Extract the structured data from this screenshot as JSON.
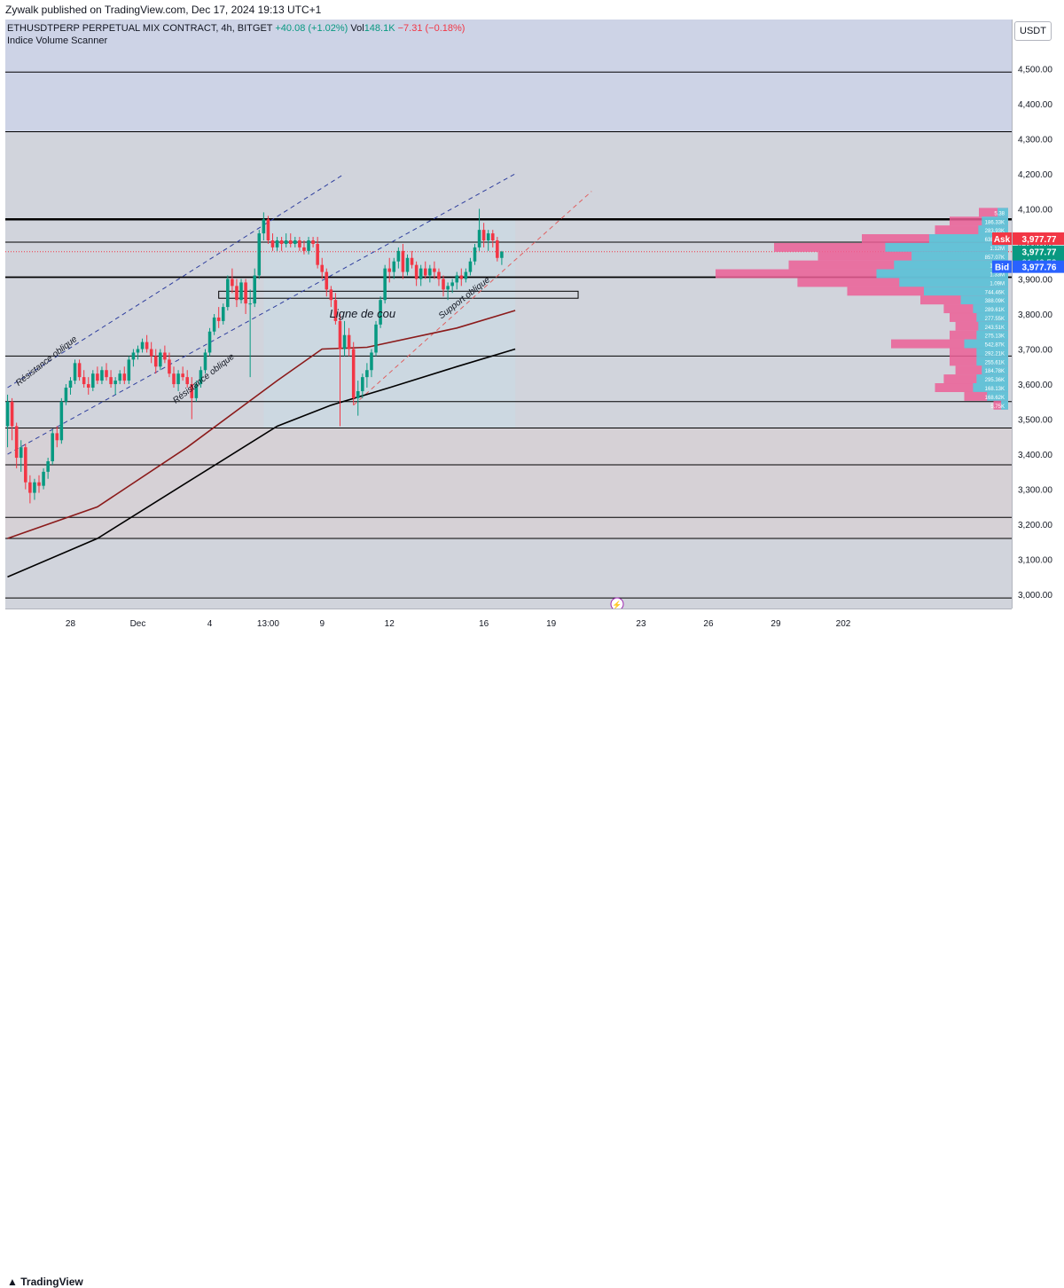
{
  "header": {
    "publisher_line": "Zywalk published on TradingView.com, Dec 17, 2024 19:13 UTC+1"
  },
  "legend": {
    "symbol": "ETHUSDTPERP PERPETUAL MIX CONTRACT, 4h, BITGET",
    "change": "+40.08 (+1.02%)",
    "vol_label": "Vol",
    "vol_value": "148.1K",
    "vol_change": "−7.31 (−0.18%)",
    "indicator": "Indice Volume Scanner"
  },
  "toolbar": {
    "currency": "USDT"
  },
  "footer": {
    "brand": "TradingView"
  },
  "colors": {
    "up": "#089981",
    "down": "#f23645",
    "ema_red": "#8b1a1a",
    "ema_black": "#000000",
    "channel": "#2f3f9e",
    "support": "#e06060",
    "vp_pink": "#ec5f96",
    "vp_cyan": "#4dd0e1",
    "ask": "#f23645",
    "bid": "#2962ff",
    "last": "#089981"
  },
  "chart_data": {
    "type": "candlestick",
    "timeframe": "4h",
    "ylim": [
      2960,
      4640
    ],
    "y_ticks": [
      3000,
      3100,
      3200,
      3300,
      3400,
      3500,
      3600,
      3700,
      3800,
      3900,
      4000,
      4100,
      4200,
      4300,
      4400,
      4500
    ],
    "y_tick_labels": [
      "3,000.00",
      "3,100.00",
      "3,200.00",
      "3,300.00",
      "3,400.00",
      "3,500.00",
      "3,600.00",
      "3,700.00",
      "3,800.00",
      "3,900.00",
      "4,000.00",
      "4,100.00",
      "4,200.00",
      "4,300.00",
      "4,400.00",
      "4,500.00"
    ],
    "x_range_bars": [
      0,
      224
    ],
    "x_ticks": [
      {
        "bar": 14,
        "label": "28"
      },
      {
        "bar": 29,
        "label": "Dec"
      },
      {
        "bar": 45,
        "label": "4"
      },
      {
        "bar": 58,
        "label": "13:00"
      },
      {
        "bar": 70,
        "label": "9"
      },
      {
        "bar": 85,
        "label": "12"
      },
      {
        "bar": 106,
        "label": "16"
      },
      {
        "bar": 121,
        "label": "19"
      },
      {
        "bar": 141,
        "label": "23"
      },
      {
        "bar": 156,
        "label": "26"
      },
      {
        "bar": 171,
        "label": "29"
      },
      {
        "bar": 186,
        "label": "202"
      }
    ],
    "candles": [
      [
        3480,
        3570,
        3420,
        3550
      ],
      [
        3550,
        3560,
        3440,
        3480
      ],
      [
        3480,
        3490,
        3360,
        3390
      ],
      [
        3390,
        3440,
        3350,
        3420
      ],
      [
        3420,
        3430,
        3300,
        3320
      ],
      [
        3320,
        3340,
        3260,
        3290
      ],
      [
        3290,
        3330,
        3270,
        3320
      ],
      [
        3320,
        3340,
        3290,
        3310
      ],
      [
        3310,
        3360,
        3300,
        3350
      ],
      [
        3350,
        3390,
        3330,
        3380
      ],
      [
        3380,
        3470,
        3370,
        3460
      ],
      [
        3460,
        3480,
        3420,
        3440
      ],
      [
        3440,
        3560,
        3430,
        3550
      ],
      [
        3550,
        3600,
        3540,
        3590
      ],
      [
        3590,
        3620,
        3570,
        3610
      ],
      [
        3610,
        3670,
        3600,
        3660
      ],
      [
        3660,
        3670,
        3610,
        3620
      ],
      [
        3620,
        3640,
        3590,
        3600
      ],
      [
        3600,
        3620,
        3570,
        3590
      ],
      [
        3590,
        3640,
        3580,
        3630
      ],
      [
        3630,
        3650,
        3600,
        3610
      ],
      [
        3610,
        3650,
        3600,
        3640
      ],
      [
        3640,
        3660,
        3610,
        3620
      ],
      [
        3620,
        3640,
        3590,
        3600
      ],
      [
        3600,
        3620,
        3570,
        3610
      ],
      [
        3610,
        3640,
        3600,
        3630
      ],
      [
        3630,
        3650,
        3600,
        3610
      ],
      [
        3610,
        3680,
        3600,
        3670
      ],
      [
        3670,
        3700,
        3650,
        3690
      ],
      [
        3690,
        3710,
        3670,
        3700
      ],
      [
        3700,
        3730,
        3690,
        3720
      ],
      [
        3720,
        3740,
        3690,
        3700
      ],
      [
        3700,
        3720,
        3660,
        3680
      ],
      [
        3680,
        3700,
        3630,
        3650
      ],
      [
        3650,
        3700,
        3640,
        3690
      ],
      [
        3690,
        3710,
        3660,
        3670
      ],
      [
        3670,
        3690,
        3620,
        3630
      ],
      [
        3630,
        3650,
        3590,
        3600
      ],
      [
        3600,
        3640,
        3580,
        3630
      ],
      [
        3630,
        3650,
        3610,
        3620
      ],
      [
        3620,
        3640,
        3590,
        3600
      ],
      [
        3600,
        3620,
        3500,
        3560
      ],
      [
        3560,
        3610,
        3550,
        3600
      ],
      [
        3600,
        3650,
        3590,
        3640
      ],
      [
        3640,
        3700,
        3630,
        3690
      ],
      [
        3690,
        3760,
        3680,
        3750
      ],
      [
        3750,
        3800,
        3740,
        3790
      ],
      [
        3790,
        3820,
        3760,
        3780
      ],
      [
        3780,
        3830,
        3770,
        3820
      ],
      [
        3820,
        3910,
        3810,
        3900
      ],
      [
        3900,
        3930,
        3860,
        3880
      ],
      [
        3880,
        3900,
        3820,
        3840
      ],
      [
        3840,
        3900,
        3830,
        3890
      ],
      [
        3890,
        3900,
        3800,
        3830
      ],
      [
        3830,
        3870,
        3620,
        3830
      ],
      [
        3830,
        3930,
        3820,
        3910
      ],
      [
        3910,
        4040,
        3900,
        4030
      ],
      [
        4030,
        4090,
        4010,
        4070
      ],
      [
        4070,
        4080,
        4000,
        4010
      ],
      [
        4010,
        4030,
        3980,
        3990
      ],
      [
        3990,
        4020,
        3980,
        4010
      ],
      [
        4010,
        4020,
        3980,
        4000
      ],
      [
        4000,
        4030,
        3990,
        4010
      ],
      [
        4010,
        4030,
        3990,
        4000
      ],
      [
        4000,
        4020,
        3990,
        4010
      ],
      [
        4010,
        4020,
        3980,
        3990
      ],
      [
        3990,
        4010,
        3970,
        3980
      ],
      [
        3980,
        4020,
        3970,
        4010
      ],
      [
        4010,
        4020,
        3990,
        4000
      ],
      [
        4000,
        4020,
        3930,
        3940
      ],
      [
        3940,
        3960,
        3900,
        3920
      ],
      [
        3920,
        3930,
        3850,
        3870
      ],
      [
        3870,
        3880,
        3820,
        3840
      ],
      [
        3840,
        3860,
        3770,
        3780
      ],
      [
        3780,
        3800,
        3480,
        3700
      ],
      [
        3700,
        3780,
        3680,
        3740
      ],
      [
        3740,
        3760,
        3680,
        3700
      ],
      [
        3700,
        3720,
        3540,
        3560
      ],
      [
        3560,
        3610,
        3510,
        3580
      ],
      [
        3580,
        3630,
        3560,
        3620
      ],
      [
        3620,
        3660,
        3590,
        3640
      ],
      [
        3640,
        3700,
        3620,
        3690
      ],
      [
        3690,
        3780,
        3680,
        3770
      ],
      [
        3770,
        3850,
        3760,
        3840
      ],
      [
        3840,
        3940,
        3830,
        3930
      ],
      [
        3930,
        3960,
        3890,
        3920
      ],
      [
        3920,
        3960,
        3900,
        3950
      ],
      [
        3950,
        3990,
        3930,
        3980
      ],
      [
        3980,
        4000,
        3900,
        3920
      ],
      [
        3920,
        3970,
        3910,
        3960
      ],
      [
        3960,
        3980,
        3930,
        3940
      ],
      [
        3940,
        3950,
        3880,
        3900
      ],
      [
        3900,
        3940,
        3880,
        3930
      ],
      [
        3930,
        3950,
        3900,
        3910
      ],
      [
        3910,
        3940,
        3890,
        3930
      ],
      [
        3930,
        3950,
        3900,
        3920
      ],
      [
        3920,
        3930,
        3880,
        3900
      ],
      [
        3900,
        3910,
        3850,
        3870
      ],
      [
        3870,
        3890,
        3840,
        3880
      ],
      [
        3880,
        3900,
        3860,
        3890
      ],
      [
        3890,
        3920,
        3870,
        3910
      ],
      [
        3910,
        3930,
        3880,
        3900
      ],
      [
        3900,
        3930,
        3890,
        3920
      ],
      [
        3920,
        3960,
        3910,
        3950
      ],
      [
        3950,
        4000,
        3940,
        3990
      ],
      [
        3990,
        4100,
        3980,
        4040
      ],
      [
        4040,
        4060,
        3990,
        4010
      ],
      [
        4010,
        4040,
        3980,
        4030
      ],
      [
        4030,
        4040,
        3990,
        4010
      ],
      [
        4010,
        4020,
        3950,
        3960
      ],
      [
        3960,
        3980,
        3940,
        3977.77
      ]
    ],
    "moving_averages": [
      {
        "color": "#8b1a1a",
        "points": [
          [
            0,
            3160
          ],
          [
            20,
            3250
          ],
          [
            40,
            3420
          ],
          [
            60,
            3610
          ],
          [
            70,
            3700
          ],
          [
            80,
            3705
          ],
          [
            100,
            3760
          ],
          [
            113,
            3810
          ]
        ]
      },
      {
        "color": "#000000",
        "points": [
          [
            0,
            3050
          ],
          [
            20,
            3160
          ],
          [
            40,
            3320
          ],
          [
            60,
            3480
          ],
          [
            72,
            3540
          ],
          [
            85,
            3590
          ],
          [
            100,
            3650
          ],
          [
            113,
            3700
          ]
        ]
      }
    ],
    "horizontal_levels": [
      4490,
      4320,
      4070,
      4005,
      3905,
      3680,
      3550,
      3475,
      3370,
      3220,
      3160,
      2990
    ],
    "zone_box": {
      "x0": 57,
      "x1": 113,
      "y0": 3475,
      "y1": 4075
    },
    "rect_box": {
      "x0": 47,
      "x1": 127,
      "y0": 3845,
      "y1": 3865
    },
    "channel_lines": [
      {
        "p1": [
          0,
          3590
        ],
        "p2": [
          75,
          4200
        ]
      },
      {
        "p1": [
          0,
          3400
        ],
        "p2": [
          113,
          4200
        ]
      }
    ],
    "support_line": {
      "p1": [
        77,
        3540
      ],
      "p2": [
        130,
        4150
      ]
    },
    "annotations": [
      {
        "text": "Résistance oblique",
        "bar": 9,
        "price": 3660,
        "angle": -38
      },
      {
        "text": "Résistance oblique",
        "bar": 44,
        "price": 3610,
        "angle": -38
      },
      {
        "text": "Support oblique",
        "bar": 102,
        "price": 3840,
        "angle": -38
      },
      {
        "text": "Ligne de cou",
        "bar": 79,
        "price": 3790,
        "angle": 0
      }
    ],
    "volume_profile": [
      {
        "price": 4090,
        "pink": 0.1,
        "cyan": 0.06,
        "label": "5.38"
      },
      {
        "price": 4065,
        "pink": 0.2,
        "cyan": 0.15,
        "label": "186.33K"
      },
      {
        "price": 4040,
        "pink": 0.25,
        "cyan": 0.17,
        "label": "283.93K"
      },
      {
        "price": 4015,
        "pink": 0.5,
        "cyan": 0.45,
        "label": "638.14K"
      },
      {
        "price": 3990,
        "pink": 0.8,
        "cyan": 0.7,
        "label": "1.12M"
      },
      {
        "price": 3965,
        "pink": 0.65,
        "cyan": 0.55,
        "label": "857.07K"
      },
      {
        "price": 3940,
        "pink": 0.75,
        "cyan": 0.65,
        "label": "1.04M"
      },
      {
        "price": 3915,
        "pink": 1.0,
        "cyan": 0.75,
        "label": "1.33M"
      },
      {
        "price": 3890,
        "pink": 0.72,
        "cyan": 0.62,
        "label": "1.09M"
      },
      {
        "price": 3865,
        "pink": 0.55,
        "cyan": 0.48,
        "label": "744.46K"
      },
      {
        "price": 3840,
        "pink": 0.3,
        "cyan": 0.27,
        "label": "388.09K"
      },
      {
        "price": 3815,
        "pink": 0.22,
        "cyan": 0.2,
        "label": "289.61K"
      },
      {
        "price": 3790,
        "pink": 0.2,
        "cyan": 0.18,
        "label": "277.55K"
      },
      {
        "price": 3765,
        "pink": 0.18,
        "cyan": 0.17,
        "label": "243.51K"
      },
      {
        "price": 3740,
        "pink": 0.2,
        "cyan": 0.18,
        "label": "275.13K"
      },
      {
        "price": 3715,
        "pink": 0.4,
        "cyan": 0.25,
        "label": "542.87K"
      },
      {
        "price": 3690,
        "pink": 0.2,
        "cyan": 0.18,
        "label": "292.21K"
      },
      {
        "price": 3665,
        "pink": 0.2,
        "cyan": 0.18,
        "label": "255.61K"
      },
      {
        "price": 3640,
        "pink": 0.18,
        "cyan": 0.15,
        "label": "184.78K"
      },
      {
        "price": 3615,
        "pink": 0.22,
        "cyan": 0.18,
        "label": "295.36K"
      },
      {
        "price": 3590,
        "pink": 0.25,
        "cyan": 0.2,
        "label": "168.13K"
      },
      {
        "price": 3565,
        "pink": 0.15,
        "cyan": 0.12,
        "label": "168.62K"
      },
      {
        "price": 3540,
        "pink": 0.05,
        "cyan": 0.04,
        "label": "5.75K"
      }
    ],
    "price_badges": [
      {
        "label": "Ask",
        "price": 4015,
        "text": "3,977.77",
        "color": "#f23645"
      },
      {
        "label": "",
        "price": 3977.77,
        "text": "3,977.77",
        "sub": "01:46:52",
        "color": "#089981"
      },
      {
        "label": "Bid",
        "price": 3935,
        "text": "3,977.76",
        "color": "#2962ff"
      }
    ]
  }
}
